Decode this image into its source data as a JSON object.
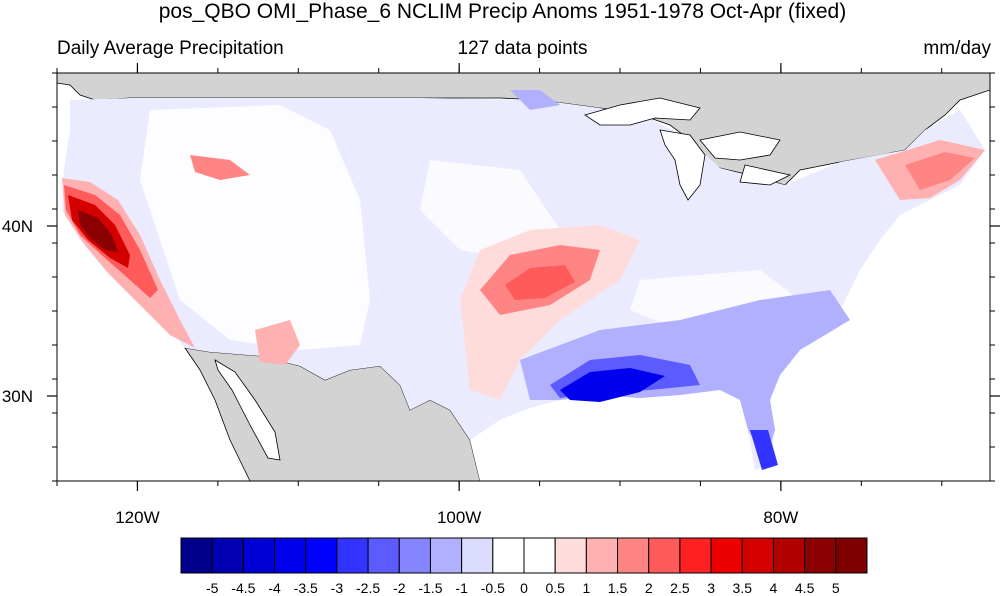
{
  "title": "pos_QBO OMI_Phase_6 NCLIM Precip Anoms 1951-1978 Oct-Apr (fixed)",
  "left_string": "Daily Average Precipitation",
  "center_string": "127 data points",
  "right_string": "mm/day",
  "map": {
    "lon_range": [
      -125,
      -67
    ],
    "lat_range": [
      25,
      49
    ],
    "lon_ticks": [
      {
        "value": -120,
        "label": "120W"
      },
      {
        "value": -100,
        "label": "100W"
      },
      {
        "value": -80,
        "label": "80W"
      }
    ],
    "lat_ticks": [
      {
        "value": 40,
        "label": "40N"
      },
      {
        "value": 30,
        "label": "30N"
      }
    ],
    "land_fill": "#d3d3d3",
    "ocean_fill": "#ffffff"
  },
  "colorbar": {
    "labels": [
      "-5",
      "-4.5",
      "-4",
      "-3.5",
      "-3",
      "-2.5",
      "-2",
      "-1.5",
      "-1",
      "-0.5",
      "0",
      "0.5",
      "1",
      "1.5",
      "2",
      "2.5",
      "3",
      "3.5",
      "4",
      "4.5",
      "5"
    ],
    "colors": [
      "#00008b",
      "#0000b2",
      "#0000d4",
      "#0000ee",
      "#0000ff",
      "#3333ff",
      "#5b5bff",
      "#8585ff",
      "#b0b0ff",
      "#dcdcff",
      "#ffffff",
      "#ffffff",
      "#ffdcdc",
      "#ffb0b0",
      "#ff8585",
      "#ff5b5b",
      "#ff2222",
      "#ee0000",
      "#d40000",
      "#b20000",
      "#8b0000",
      "#7f0000"
    ]
  }
}
